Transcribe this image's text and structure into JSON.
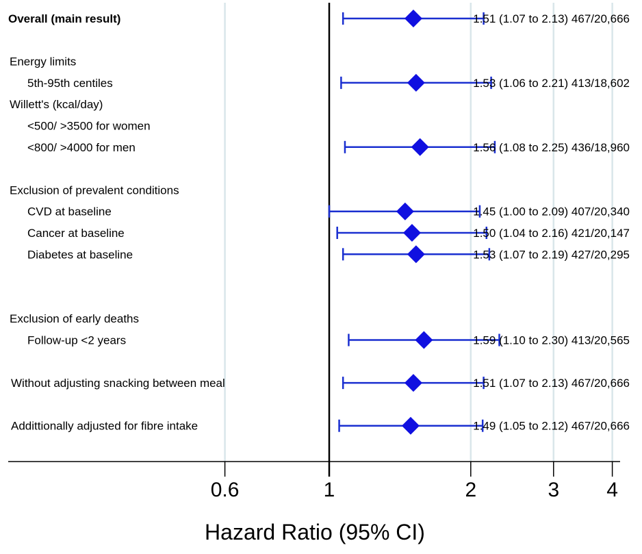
{
  "chart_data": {
    "type": "forest",
    "xlabel": "Hazard Ratio (95% CI)",
    "x_scale": "log",
    "xlim": [
      0.6,
      4
    ],
    "reference_line": 1,
    "xticks": [
      {
        "value": 0.6,
        "label": "0.6"
      },
      {
        "value": 1,
        "label": "1"
      },
      {
        "value": 2,
        "label": "2"
      },
      {
        "value": 3,
        "label": "3"
      },
      {
        "value": 4,
        "label": "4"
      }
    ],
    "headings": [
      {
        "label": "Energy limits",
        "row": 1
      },
      {
        "label": "Willett's (kcal/day)",
        "row": 2
      },
      {
        "label": "<500/ >3500 for women",
        "row": 2.5
      },
      {
        "label": "Exclusion of prevalent conditions",
        "row": 4
      },
      {
        "label": "Exclusion of early deaths",
        "row": 7
      }
    ],
    "rows": [
      {
        "label": "Overall (main result)",
        "bold": true,
        "indent": 0,
        "row": 0,
        "hr": 1.51,
        "lower": 1.07,
        "upper": 2.13,
        "stat": "1.51 (1.07 to 2.13) 467/20,666"
      },
      {
        "label": "5th-95th centiles",
        "indent": 1,
        "row": 1.5,
        "hr": 1.53,
        "lower": 1.06,
        "upper": 2.21,
        "stat": "1.53 (1.06 to 2.21)  413/18,602"
      },
      {
        "label": "<800/ >4000 for men",
        "indent": 1,
        "row": 3,
        "hr": 1.56,
        "lower": 1.08,
        "upper": 2.25,
        "stat": "1.56 (1.08 to 2.25)  436/18,960"
      },
      {
        "label": "CVD at baseline",
        "indent": 1,
        "row": 4.5,
        "hr": 1.45,
        "lower": 1.0,
        "upper": 2.09,
        "stat": "1.45 (1.00 to 2.09)  407/20,340"
      },
      {
        "label": "Cancer at baseline",
        "indent": 1,
        "row": 5,
        "hr": 1.5,
        "lower": 1.04,
        "upper": 2.16,
        "stat": "1.50 (1.04 to 2.16)  421/20,147"
      },
      {
        "label": "Diabetes at baseline",
        "indent": 1,
        "row": 5.5,
        "hr": 1.53,
        "lower": 1.07,
        "upper": 2.19,
        "stat": "1.53 (1.07 to 2.19)  427/20,295"
      },
      {
        "label": "Follow-up <2 years",
        "indent": 1,
        "row": 7.5,
        "hr": 1.59,
        "lower": 1.1,
        "upper": 2.3,
        "stat": "1.59 (1.10 to 2.30)  413/20,565"
      },
      {
        "label": "Without adjusting snacking between meal",
        "indent": 0,
        "row": 8.5,
        "hr": 1.51,
        "lower": 1.07,
        "upper": 2.13,
        "stat": "1.51 (1.07 to 2.13)  467/20,666"
      },
      {
        "label": "Addittionally adjusted for fibre intake",
        "indent": 0,
        "row": 9.5,
        "hr": 1.49,
        "lower": 1.05,
        "upper": 2.12,
        "stat": "1.49 (1.05 to 2.12)  467/20,666"
      }
    ],
    "colors": {
      "marker": "#1010e0",
      "ci": "#1a2fd0",
      "reference": "#000000",
      "grid": "#d9e6ea",
      "axis": "#000000"
    }
  }
}
